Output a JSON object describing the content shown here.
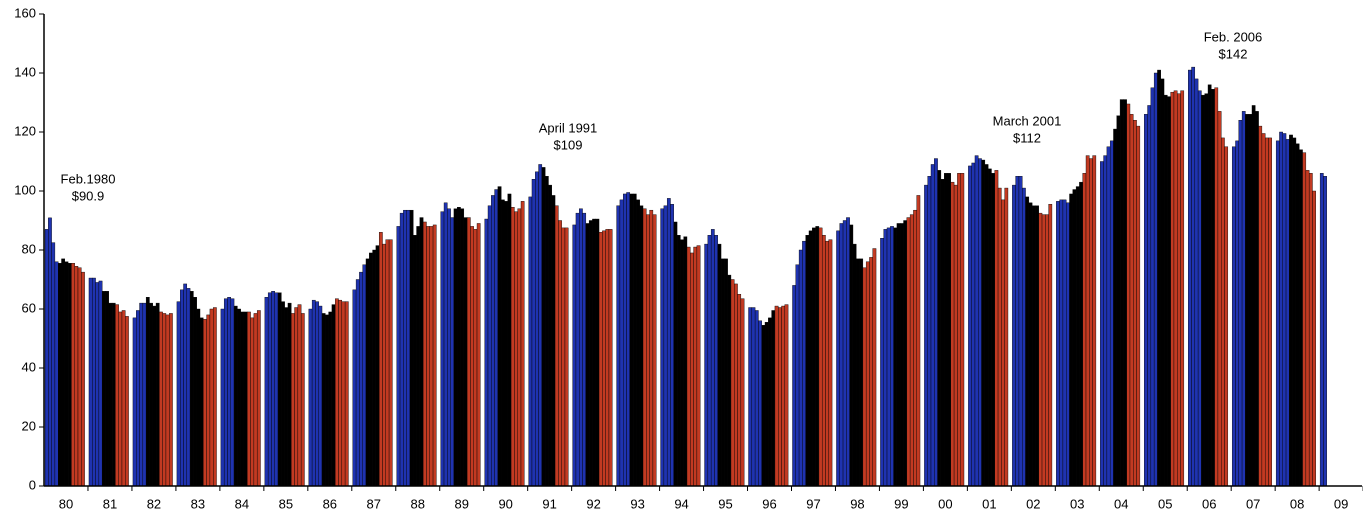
{
  "chart_data": {
    "type": "bar",
    "categories": [
      "80",
      "81",
      "82",
      "83",
      "84",
      "85",
      "86",
      "87",
      "88",
      "89",
      "90",
      "91",
      "92",
      "93",
      "94",
      "95",
      "96",
      "97",
      "98",
      "99",
      "00",
      "01",
      "02",
      "03",
      "04",
      "05",
      "06",
      "07",
      "08",
      "09"
    ],
    "values": [
      [
        87,
        90.9,
        82.5,
        76,
        75.5,
        77,
        76,
        75.5,
        75.5,
        74.5,
        74,
        72.5
      ],
      [
        70.5,
        70.5,
        69,
        69.5,
        66,
        66,
        62,
        62,
        61.5,
        59,
        59.5,
        57.5
      ],
      [
        57,
        59.5,
        62,
        62,
        64,
        62,
        61,
        62,
        59,
        58.5,
        58,
        58.5
      ],
      [
        62.5,
        66.5,
        68.5,
        67,
        66,
        64,
        60,
        57,
        56.5,
        58,
        60,
        60.5
      ],
      [
        60,
        63.5,
        64,
        63.5,
        61,
        60,
        59,
        59,
        59,
        57,
        58.5,
        59.5
      ],
      [
        64,
        65.5,
        66,
        65.5,
        65.5,
        62.5,
        60.5,
        62,
        58.5,
        60.5,
        61.5,
        58.5
      ],
      [
        60,
        63,
        62.5,
        61,
        58.5,
        58,
        59,
        61.5,
        63.5,
        63,
        62.5,
        62.5
      ],
      [
        66.5,
        70,
        72.5,
        75,
        77,
        79,
        80,
        81.5,
        86,
        82,
        83.5,
        83.5
      ],
      [
        88,
        92.5,
        93.5,
        93.5,
        93.5,
        85,
        88,
        91,
        89.5,
        88,
        88,
        88.5
      ],
      [
        93,
        96,
        94,
        91,
        94,
        94.5,
        94,
        91,
        91,
        88,
        87,
        89
      ],
      [
        90.5,
        95,
        98.5,
        100.5,
        101.5,
        97,
        96.5,
        99,
        94.5,
        93,
        94,
        96.5
      ],
      [
        98,
        104,
        106.5,
        109,
        108,
        105,
        102,
        98.5,
        95,
        90,
        87.5,
        87.5
      ],
      [
        88.5,
        92.5,
        94,
        92.5,
        89,
        90,
        90.5,
        90.5,
        86,
        86.5,
        87,
        87
      ],
      [
        95,
        97,
        99,
        99.5,
        99,
        99,
        97,
        95,
        94,
        92,
        93.5,
        92
      ],
      [
        94,
        95,
        97.5,
        95.5,
        89.5,
        85,
        83.5,
        84.5,
        81,
        79,
        81,
        81.5
      ],
      [
        82,
        85,
        87,
        85,
        82,
        77,
        77,
        71.5,
        70,
        68.5,
        65,
        63.5
      ],
      [
        60.5,
        60.5,
        59.5,
        56,
        54.5,
        55.5,
        57,
        59.5,
        61,
        60.5,
        61,
        61.5
      ],
      [
        68,
        75,
        80,
        83,
        85,
        86.5,
        87.5,
        88,
        87.5,
        85,
        83,
        83.5
      ],
      [
        86.5,
        89,
        90,
        91,
        88.5,
        82,
        77,
        77,
        74,
        76,
        77.5,
        80.5
      ],
      [
        84,
        87,
        87.5,
        88,
        87.5,
        89,
        89,
        90,
        91,
        92,
        93.5,
        98.5
      ],
      [
        102,
        105,
        109,
        111,
        107,
        104,
        106,
        106,
        103,
        102,
        106,
        106
      ],
      [
        108.5,
        109.5,
        112,
        111,
        110.5,
        109,
        107.5,
        106,
        107,
        101,
        97,
        101
      ],
      [
        102,
        105,
        105,
        101,
        98,
        96,
        95,
        95,
        92.5,
        92,
        92,
        95.5
      ],
      [
        96.5,
        97,
        97,
        96,
        99,
        100.5,
        101.5,
        103,
        106,
        112,
        111,
        112
      ],
      [
        110,
        112,
        115,
        117,
        121,
        125.5,
        131,
        131,
        129.5,
        126,
        124,
        122
      ],
      [
        126,
        129,
        135,
        140,
        141,
        138,
        132.5,
        132,
        133.5,
        134,
        133,
        134
      ],
      [
        141,
        142,
        138,
        134,
        132.5,
        133,
        136,
        134.5,
        135,
        127,
        118,
        115
      ],
      [
        115,
        117,
        124,
        127,
        126,
        126,
        129,
        127,
        122,
        119.5,
        118,
        118
      ],
      [
        117,
        120,
        119.5,
        117.5,
        119,
        118,
        116,
        114,
        113,
        107,
        106,
        100
      ],
      [
        106,
        105,
        null,
        null,
        null,
        null,
        null,
        null,
        null,
        null,
        null,
        null
      ]
    ],
    "colors": [
      "#1f33b0",
      "#1f33b0",
      "#1f33b0",
      "#1f33b0",
      "#000000",
      "#000000",
      "#000000",
      "#000000",
      "#c23a22",
      "#c23a22",
      "#c23a22",
      "#c23a22"
    ],
    "ylim": [
      0,
      160
    ],
    "yticks": [
      0,
      20,
      40,
      60,
      80,
      100,
      120,
      140,
      160
    ],
    "annotations": [
      {
        "lines": [
          "Feb.1980",
          "$90.9"
        ]
      },
      {
        "lines": [
          "April 1991",
          "$109"
        ]
      },
      {
        "lines": [
          "March 2001",
          "$112"
        ]
      },
      {
        "lines": [
          "Feb. 2006",
          "$142"
        ]
      }
    ]
  }
}
